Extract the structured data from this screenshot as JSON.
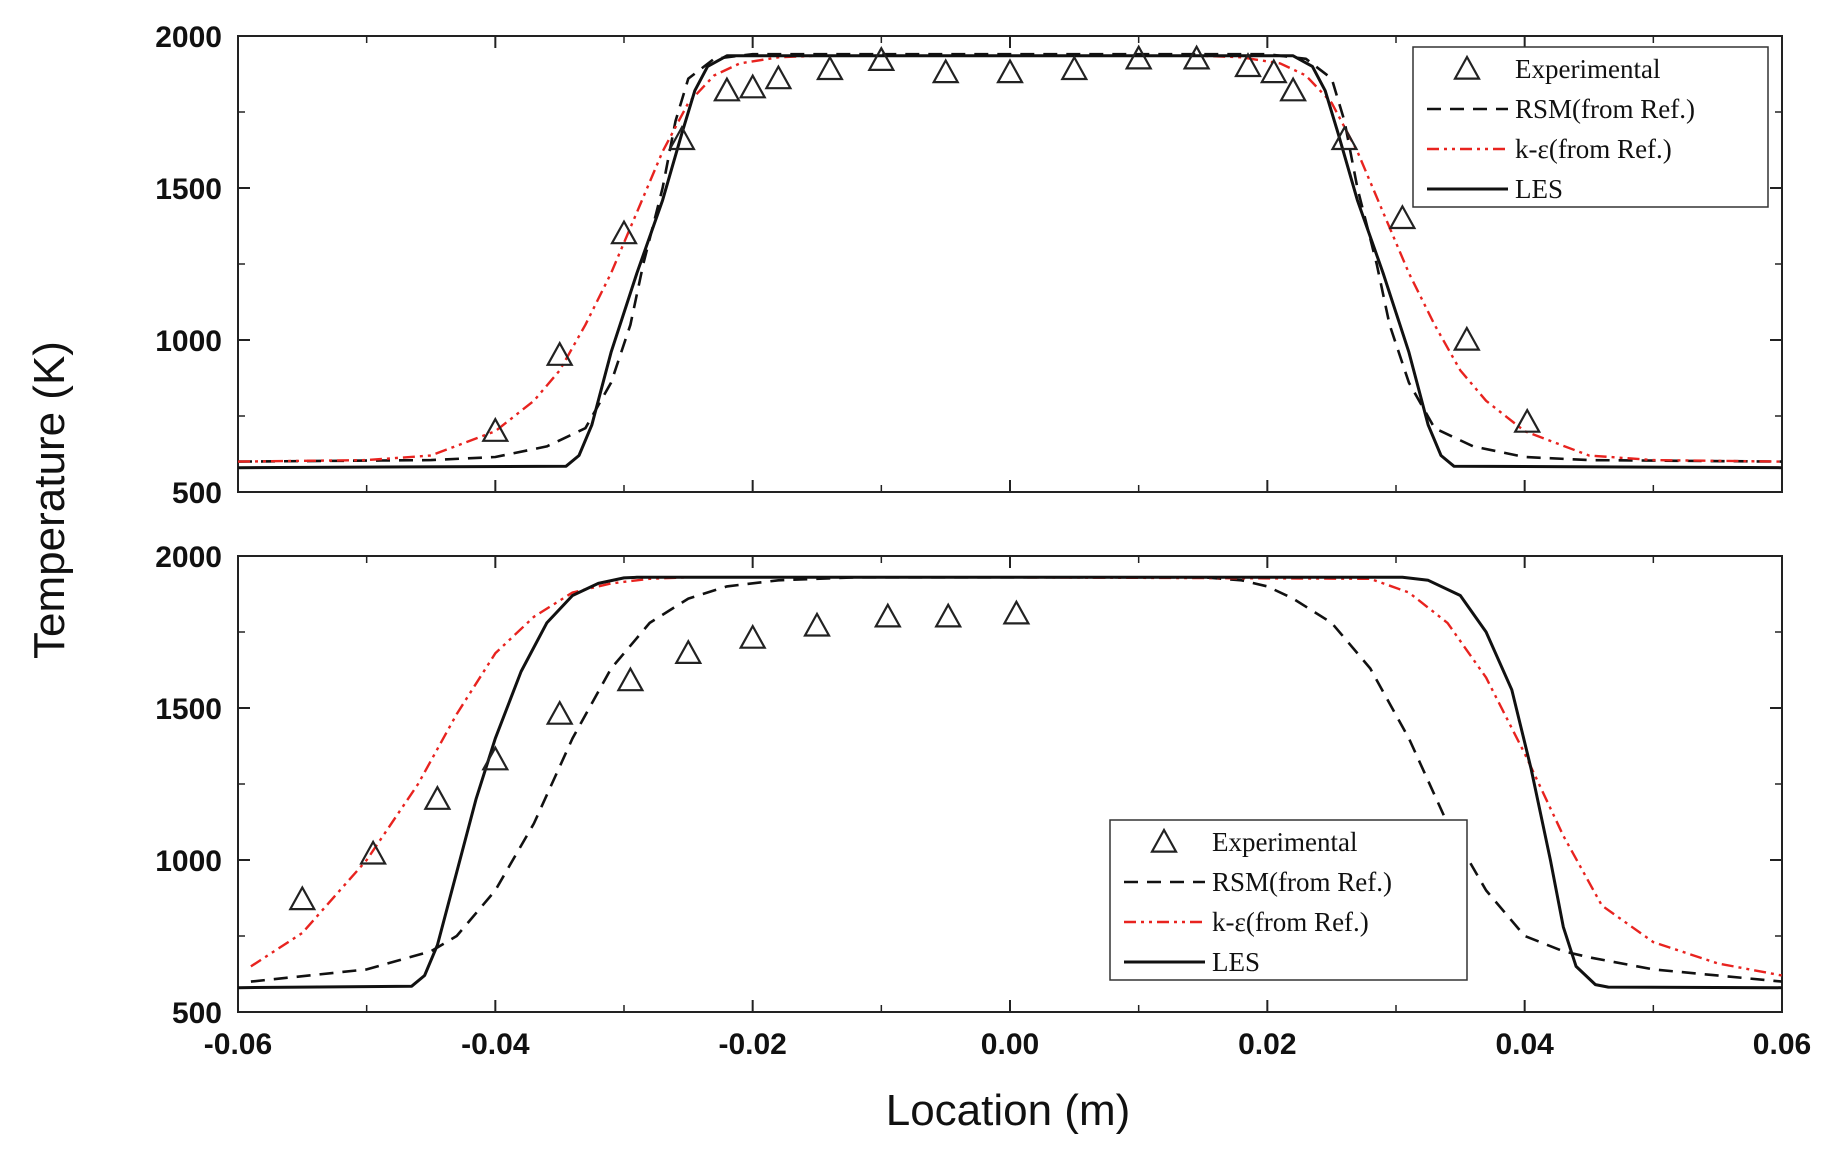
{
  "chart_data": {
    "type": "line",
    "ylabel": "Temperature (K)",
    "xlabel": "Location (m)",
    "xlim": [
      -0.06,
      0.06
    ],
    "ylim": [
      500,
      2000
    ],
    "x_ticks": [
      "-0.06",
      "-0.04",
      "-0.02",
      "0.00",
      "0.02",
      "0.04",
      "0.06"
    ],
    "y_ticks": [
      "500",
      "1000",
      "1500",
      "2000"
    ],
    "legend_labels": [
      "Experimental",
      "RSM(from Ref.)",
      "k-ε(from Ref.)",
      "LES"
    ],
    "colors": {
      "experimental": "#222222",
      "rsm": "#111111",
      "ke": "#e8231f",
      "les": "#111111"
    },
    "panels": [
      {
        "legend_position": "top-right",
        "experimental": {
          "x": [
            -0.04,
            -0.035,
            -0.03,
            -0.0255,
            -0.022,
            -0.02,
            -0.018,
            -0.014,
            -0.01,
            -0.005,
            0.0,
            0.005,
            0.01,
            0.0145,
            0.0185,
            0.0205,
            0.022,
            0.026,
            0.0305,
            0.0355,
            0.0402
          ],
          "y": [
            700,
            950,
            1350,
            1660,
            1820,
            1830,
            1860,
            1890,
            1920,
            1880,
            1880,
            1890,
            1925,
            1925,
            1900,
            1880,
            1820,
            1660,
            1400,
            1000,
            730
          ]
        },
        "rsm": {
          "x": [
            -0.06,
            -0.045,
            -0.04,
            -0.036,
            -0.033,
            -0.031,
            -0.0295,
            -0.0285,
            -0.027,
            -0.026,
            -0.025,
            -0.023,
            -0.02,
            0.0,
            0.02,
            0.023,
            0.025,
            0.026,
            0.027,
            0.0285,
            0.0295,
            0.031,
            0.033,
            0.036,
            0.04,
            0.045,
            0.06
          ],
          "y": [
            600,
            605,
            615,
            650,
            710,
            860,
            1050,
            1250,
            1500,
            1720,
            1860,
            1925,
            1940,
            1940,
            1940,
            1925,
            1860,
            1720,
            1500,
            1250,
            1050,
            860,
            710,
            650,
            615,
            605,
            600
          ]
        },
        "ke": {
          "x": [
            -0.06,
            -0.05,
            -0.045,
            -0.04,
            -0.037,
            -0.035,
            -0.033,
            -0.031,
            -0.029,
            -0.027,
            -0.025,
            -0.023,
            -0.021,
            -0.018,
            -0.015,
            0.0,
            0.015,
            0.018,
            0.021,
            0.023,
            0.025,
            0.027,
            0.029,
            0.031,
            0.033,
            0.035,
            0.037,
            0.04,
            0.045,
            0.05,
            0.06
          ],
          "y": [
            600,
            605,
            620,
            700,
            800,
            900,
            1050,
            1220,
            1420,
            1620,
            1780,
            1870,
            1910,
            1930,
            1935,
            1935,
            1935,
            1930,
            1910,
            1870,
            1780,
            1620,
            1420,
            1220,
            1050,
            900,
            800,
            700,
            620,
            605,
            600
          ]
        },
        "les": {
          "x": [
            -0.06,
            -0.0345,
            -0.0335,
            -0.0325,
            -0.031,
            -0.029,
            -0.027,
            -0.0255,
            -0.0245,
            -0.0235,
            -0.022,
            0.0,
            0.022,
            0.0235,
            0.0245,
            0.0255,
            0.027,
            0.029,
            0.031,
            0.0325,
            0.0335,
            0.0345,
            0.06
          ],
          "y": [
            580,
            585,
            620,
            720,
            960,
            1220,
            1460,
            1680,
            1820,
            1900,
            1935,
            1935,
            1935,
            1900,
            1820,
            1680,
            1460,
            1220,
            960,
            720,
            620,
            585,
            580
          ]
        }
      },
      {
        "legend_position": "bottom-right",
        "experimental": {
          "x": [
            -0.055,
            -0.0495,
            -0.0445,
            -0.04,
            -0.035,
            -0.0295,
            -0.025,
            -0.02,
            -0.015,
            -0.0095,
            -0.0048,
            0.0005
          ],
          "y": [
            870,
            1020,
            1200,
            1330,
            1480,
            1590,
            1680,
            1730,
            1770,
            1800,
            1800,
            1810
          ]
        },
        "rsm": {
          "x": [
            -0.059,
            -0.05,
            -0.045,
            -0.043,
            -0.04,
            -0.037,
            -0.034,
            -0.031,
            -0.028,
            -0.025,
            -0.022,
            -0.018,
            -0.012,
            0.0,
            0.015,
            0.018,
            0.02,
            0.022,
            0.025,
            0.028,
            0.031,
            0.034,
            0.037,
            0.04,
            0.043,
            0.045,
            0.05,
            0.06
          ],
          "y": [
            600,
            640,
            700,
            750,
            900,
            1120,
            1400,
            1630,
            1780,
            1860,
            1900,
            1920,
            1930,
            1930,
            1930,
            1920,
            1900,
            1860,
            1780,
            1630,
            1400,
            1120,
            900,
            750,
            700,
            680,
            640,
            600
          ]
        },
        "ke": {
          "x": [
            -0.059,
            -0.055,
            -0.05,
            -0.046,
            -0.043,
            -0.04,
            -0.037,
            -0.034,
            -0.031,
            -0.028,
            -0.025,
            0.0,
            0.028,
            0.031,
            0.034,
            0.037,
            0.04,
            0.043,
            0.046,
            0.05,
            0.055,
            0.06
          ],
          "y": [
            650,
            760,
            1000,
            1250,
            1480,
            1680,
            1800,
            1880,
            1910,
            1925,
            1930,
            1930,
            1925,
            1880,
            1780,
            1600,
            1350,
            1080,
            850,
            730,
            660,
            620
          ]
        },
        "les": {
          "x": [
            -0.06,
            -0.0465,
            -0.0455,
            -0.0445,
            -0.043,
            -0.0415,
            -0.04,
            -0.038,
            -0.036,
            -0.034,
            -0.032,
            -0.03,
            -0.029,
            0.0,
            0.0305,
            0.0325,
            0.035,
            0.037,
            0.039,
            0.0405,
            0.042,
            0.043,
            0.044,
            0.0455,
            0.0465,
            0.06
          ],
          "y": [
            580,
            585,
            620,
            720,
            960,
            1200,
            1400,
            1620,
            1780,
            1870,
            1910,
            1928,
            1930,
            1930,
            1930,
            1920,
            1870,
            1750,
            1560,
            1300,
            1000,
            780,
            650,
            590,
            582,
            580
          ]
        }
      }
    ]
  }
}
